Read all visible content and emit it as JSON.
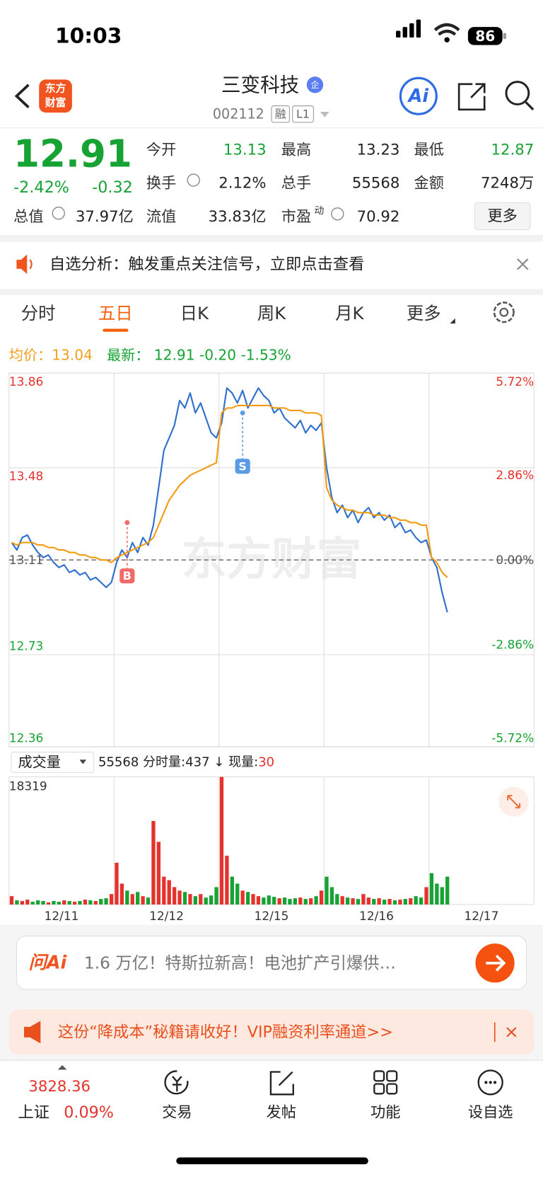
{
  "status": {
    "time": "10:03",
    "battery": "86"
  },
  "header": {
    "logo": [
      "东方",
      "财富"
    ],
    "title": "三变科技",
    "badge": "企",
    "code": "002112",
    "tags": [
      "融",
      "L1"
    ],
    "ai": "Ai"
  },
  "quote": {
    "price": "12.91",
    "change_pct": "-2.42%",
    "change": "-0.32",
    "more": "更多",
    "fields": [
      {
        "label": "今开",
        "value": "13.13",
        "color": "#16a334"
      },
      {
        "label": "最高",
        "value": "13.23"
      },
      {
        "label": "最低",
        "value": "12.87",
        "color": "#16a334"
      },
      {
        "label": "换手",
        "value": "2.12%"
      },
      {
        "label": "总手",
        "value": "55568"
      },
      {
        "label": "金额",
        "value": "7248万"
      },
      {
        "label": "总值",
        "value": "37.97亿"
      },
      {
        "label": "流值",
        "value": "33.83亿"
      },
      {
        "label": "市盈",
        "sup": "动",
        "value": "70.92"
      }
    ]
  },
  "notice": "自选分析：触发重点关注信号，立即点击查看",
  "tabs": {
    "items": [
      "分时",
      "五日",
      "日K",
      "周K",
      "月K",
      "更多"
    ],
    "active": 1
  },
  "summary": {
    "avg_label": "均价：",
    "avg": "13.04",
    "last_label": "最新：",
    "last": "12.91",
    "change": "-0.20",
    "change_pct": "-1.53%"
  },
  "watermark": "东方财富",
  "chart": {
    "type": "line",
    "ylim": [
      12.36,
      13.86
    ],
    "yticks": [
      13.86,
      13.48,
      13.11,
      12.73,
      12.36
    ],
    "y2lim": [
      -5.72,
      5.72
    ],
    "y2ticks": [
      {
        "value": 5.72,
        "label": "5.72%"
      },
      {
        "value": 2.86,
        "label": "2.86%"
      },
      {
        "value": 0,
        "label": "0.00%"
      },
      {
        "value": -2.86,
        "label": "-2.86%"
      },
      {
        "value": -5.72,
        "label": "-5.72%"
      }
    ],
    "x_labels": [
      "12/11",
      "12/12",
      "12/15",
      "12/16",
      "12/17"
    ],
    "series": [
      {
        "color": "#2f6fd0",
        "values": [
          13.18,
          13.15,
          13.2,
          13.21,
          13.17,
          13.14,
          13.12,
          13.13,
          13.1,
          13.08,
          13.09,
          13.06,
          13.07,
          13.05,
          13.06,
          13.03,
          13.04,
          13.02,
          13.0,
          13.02,
          13.1,
          13.15,
          13.12,
          13.18,
          13.14,
          13.2,
          13.17,
          13.25,
          13.4,
          13.55,
          13.6,
          13.65,
          13.75,
          13.72,
          13.78,
          13.7,
          13.74,
          13.68,
          13.62,
          13.6,
          13.66,
          13.8,
          13.78,
          13.74,
          13.79,
          13.72,
          13.76,
          13.8,
          13.77,
          13.75,
          13.7,
          13.72,
          13.68,
          13.66,
          13.64,
          13.67,
          13.62,
          13.65,
          13.63,
          13.66,
          13.48,
          13.36,
          13.3,
          13.33,
          13.28,
          13.31,
          13.26,
          13.3,
          13.32,
          13.28,
          13.3,
          13.27,
          13.29,
          13.24,
          13.26,
          13.22,
          13.23,
          13.2,
          13.18,
          13.19,
          13.12,
          13.08,
          12.98,
          12.9
        ]
      },
      {
        "color": "#f39c12",
        "values": [
          13.18,
          13.17,
          13.18,
          13.18,
          13.18,
          13.17,
          13.17,
          13.16,
          13.16,
          13.15,
          13.15,
          13.14,
          13.14,
          13.13,
          13.13,
          13.12,
          13.12,
          13.11,
          13.11,
          13.1,
          13.12,
          13.13,
          13.14,
          13.15,
          13.16,
          13.17,
          13.18,
          13.2,
          13.25,
          13.3,
          13.35,
          13.38,
          13.41,
          13.43,
          13.45,
          13.46,
          13.47,
          13.48,
          13.49,
          13.5,
          13.7,
          13.72,
          13.72,
          13.73,
          13.73,
          13.73,
          13.73,
          13.73,
          13.73,
          13.73,
          13.72,
          13.72,
          13.72,
          13.71,
          13.71,
          13.71,
          13.7,
          13.7,
          13.7,
          13.69,
          13.4,
          13.35,
          13.33,
          13.32,
          13.31,
          13.31,
          13.3,
          13.3,
          13.3,
          13.29,
          13.29,
          13.29,
          13.28,
          13.28,
          13.27,
          13.27,
          13.26,
          13.26,
          13.25,
          13.25,
          13.12,
          13.1,
          13.06,
          13.04
        ]
      }
    ],
    "markers": [
      {
        "label": "B",
        "index": 22,
        "value": 13.26,
        "color": "#f06a6a"
      },
      {
        "label": "S",
        "index": 44,
        "value": 13.7,
        "color": "#5b9be6"
      }
    ]
  },
  "volume": {
    "label": "成交量",
    "total": "55568",
    "minute_label": "分时量:",
    "minute": "437",
    "arrow": "↓",
    "current_label": "现量:",
    "current": "30",
    "max_label": "18319",
    "ylim": [
      0,
      18319
    ],
    "values": [
      1200,
      600,
      500,
      700,
      400,
      600,
      500,
      300,
      500,
      400,
      600,
      500,
      400,
      500,
      700,
      600,
      500,
      800,
      900,
      1500,
      6000,
      3000,
      2000,
      1500,
      1800,
      1200,
      1000,
      12000,
      9000,
      4000,
      3500,
      2500,
      2000,
      1800,
      1500,
      1200,
      1500,
      1000,
      1300,
      2500,
      18319,
      7000,
      4000,
      3000,
      2000,
      1800,
      1500,
      1200,
      1000,
      1300,
      1100,
      900,
      1000,
      800,
      900,
      1000,
      800,
      900,
      1200,
      2000,
      4000,
      2500,
      1500,
      1200,
      1000,
      900,
      800,
      1500,
      1000,
      800,
      900,
      700,
      800,
      600,
      700,
      800,
      900,
      1200,
      1000,
      2500,
      4500,
      3000,
      2500,
      4000
    ]
  },
  "ai_bar": {
    "logo": "问Ai",
    "text": "1.6 万亿！特斯拉新高！电池扩产引爆供…"
  },
  "promo": "这份“降成本”秘籍请收好！VIP融资利率通道>>",
  "tabbar": {
    "index_value": "3828.36",
    "index_name": "上证",
    "index_change": "0.09%",
    "items": [
      "交易",
      "发帖",
      "功能",
      "设自选"
    ]
  }
}
